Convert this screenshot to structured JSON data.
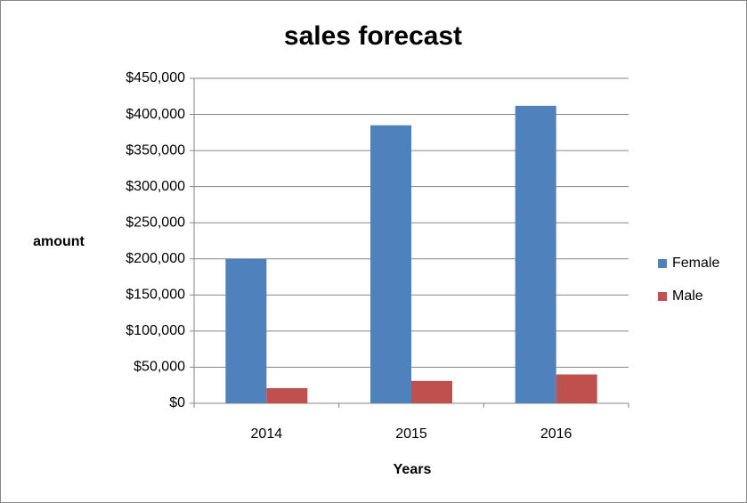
{
  "chart_data": {
    "type": "bar",
    "title": "sales forecast",
    "y_label": "amount",
    "x_label": "Years",
    "categories": [
      "2014",
      "2015",
      "2016"
    ],
    "series": [
      {
        "name": "Female",
        "color": "#4f81bd",
        "values": [
          200000,
          385000,
          412000
        ]
      },
      {
        "name": "Male",
        "color": "#c0504d",
        "values": [
          21000,
          31000,
          40000
        ]
      }
    ],
    "ylim": [
      0,
      450000
    ],
    "yticks": [
      {
        "value": 0,
        "label": "$0"
      },
      {
        "value": 50000,
        "label": "$50,000"
      },
      {
        "value": 100000,
        "label": "$100,000"
      },
      {
        "value": 150000,
        "label": "$150,000"
      },
      {
        "value": 200000,
        "label": "$200,000"
      },
      {
        "value": 250000,
        "label": "$250,000"
      },
      {
        "value": 300000,
        "label": "$300,000"
      },
      {
        "value": 350000,
        "label": "$350,000"
      },
      {
        "value": 400000,
        "label": "$400,000"
      },
      {
        "value": 450000,
        "label": "$450,000"
      }
    ],
    "grid": true,
    "legend": "right"
  }
}
